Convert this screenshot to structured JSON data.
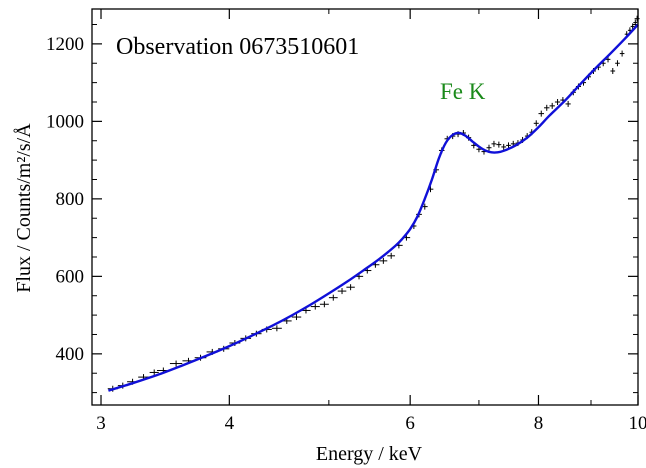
{
  "chart_data": {
    "type": "line",
    "xscale": "log",
    "xlim": [
      2.94,
      10.0
    ],
    "ylim": [
      268,
      1290
    ],
    "xticks_major": [
      3,
      4,
      6,
      8,
      10
    ],
    "xticks_major_labels": [
      "3",
      "4",
      "6",
      "8",
      "10"
    ],
    "xticks_minor": [
      5,
      7,
      9
    ],
    "yticks_major": [
      400,
      600,
      800,
      1000,
      1200
    ],
    "yticks_major_labels": [
      "400",
      "600",
      "800",
      "1000",
      "1200"
    ],
    "ytick_minor_step": 50,
    "xlabel": "Energy / keV",
    "ylabel": "Flux / Counts/m²/s/Å",
    "annotations": [
      {
        "text": "Observation 0673510601",
        "color": "#000000"
      },
      {
        "text": "Fe K",
        "color": "#1a8a1a"
      }
    ],
    "grid": false,
    "series": [
      {
        "kind": "model",
        "color": "#1010d8",
        "x": [
          3.05,
          3.2,
          3.4,
          3.6,
          3.8,
          4.0,
          4.2,
          4.4,
          4.6,
          4.8,
          5.0,
          5.2,
          5.4,
          5.6,
          5.8,
          5.9,
          6.0,
          6.1,
          6.2,
          6.3,
          6.4,
          6.5,
          6.6,
          6.7,
          6.8,
          6.9,
          7.0,
          7.1,
          7.2,
          7.3,
          7.4,
          7.6,
          7.8,
          8.0,
          8.2,
          8.5,
          8.8,
          9.1,
          9.4,
          9.7,
          10.0
        ],
        "y": [
          305,
          322,
          345,
          370,
          395,
          420,
          446,
          472,
          499,
          527,
          556,
          585,
          615,
          645,
          678,
          698,
          722,
          755,
          800,
          850,
          905,
          945,
          965,
          970,
          962,
          948,
          935,
          925,
          920,
          920,
          924,
          938,
          958,
          985,
          1015,
          1055,
          1098,
          1138,
          1175,
          1212,
          1250
        ]
      },
      {
        "kind": "data",
        "color": "#000000",
        "x": [
          3.08,
          3.15,
          3.22,
          3.3,
          3.38,
          3.45,
          3.55,
          3.65,
          3.75,
          3.85,
          3.95,
          4.05,
          4.15,
          4.25,
          4.35,
          4.45,
          4.55,
          4.65,
          4.75,
          4.85,
          4.95,
          5.05,
          5.15,
          5.25,
          5.35,
          5.45,
          5.55,
          5.65,
          5.75,
          5.85,
          5.95,
          6.05,
          6.12,
          6.2,
          6.28,
          6.36,
          6.44,
          6.52,
          6.6,
          6.68,
          6.76,
          6.84,
          6.92,
          7.0,
          7.08,
          7.16,
          7.24,
          7.32,
          7.4,
          7.48,
          7.56,
          7.64,
          7.72,
          7.8,
          7.88,
          7.96,
          8.05,
          8.15,
          8.25,
          8.35,
          8.45,
          8.55,
          8.65,
          8.75,
          8.85,
          8.95,
          9.05,
          9.15,
          9.25,
          9.35,
          9.45,
          9.55,
          9.65,
          9.75,
          9.82,
          9.88,
          9.94,
          9.98
        ],
        "y": [
          310,
          318,
          328,
          340,
          352,
          357,
          375,
          382,
          390,
          405,
          413,
          428,
          440,
          452,
          463,
          466,
          485,
          495,
          512,
          522,
          528,
          545,
          562,
          572,
          600,
          615,
          630,
          640,
          653,
          680,
          700,
          730,
          760,
          780,
          825,
          875,
          925,
          955,
          962,
          967,
          970,
          958,
          938,
          928,
          922,
          932,
          942,
          940,
          934,
          938,
          942,
          944,
          952,
          962,
          972,
          995,
          1020,
          1035,
          1040,
          1050,
          1055,
          1045,
          1075,
          1090,
          1100,
          1115,
          1130,
          1140,
          1150,
          1160,
          1130,
          1150,
          1175,
          1225,
          1235,
          1245,
          1255,
          1265
        ]
      }
    ]
  }
}
